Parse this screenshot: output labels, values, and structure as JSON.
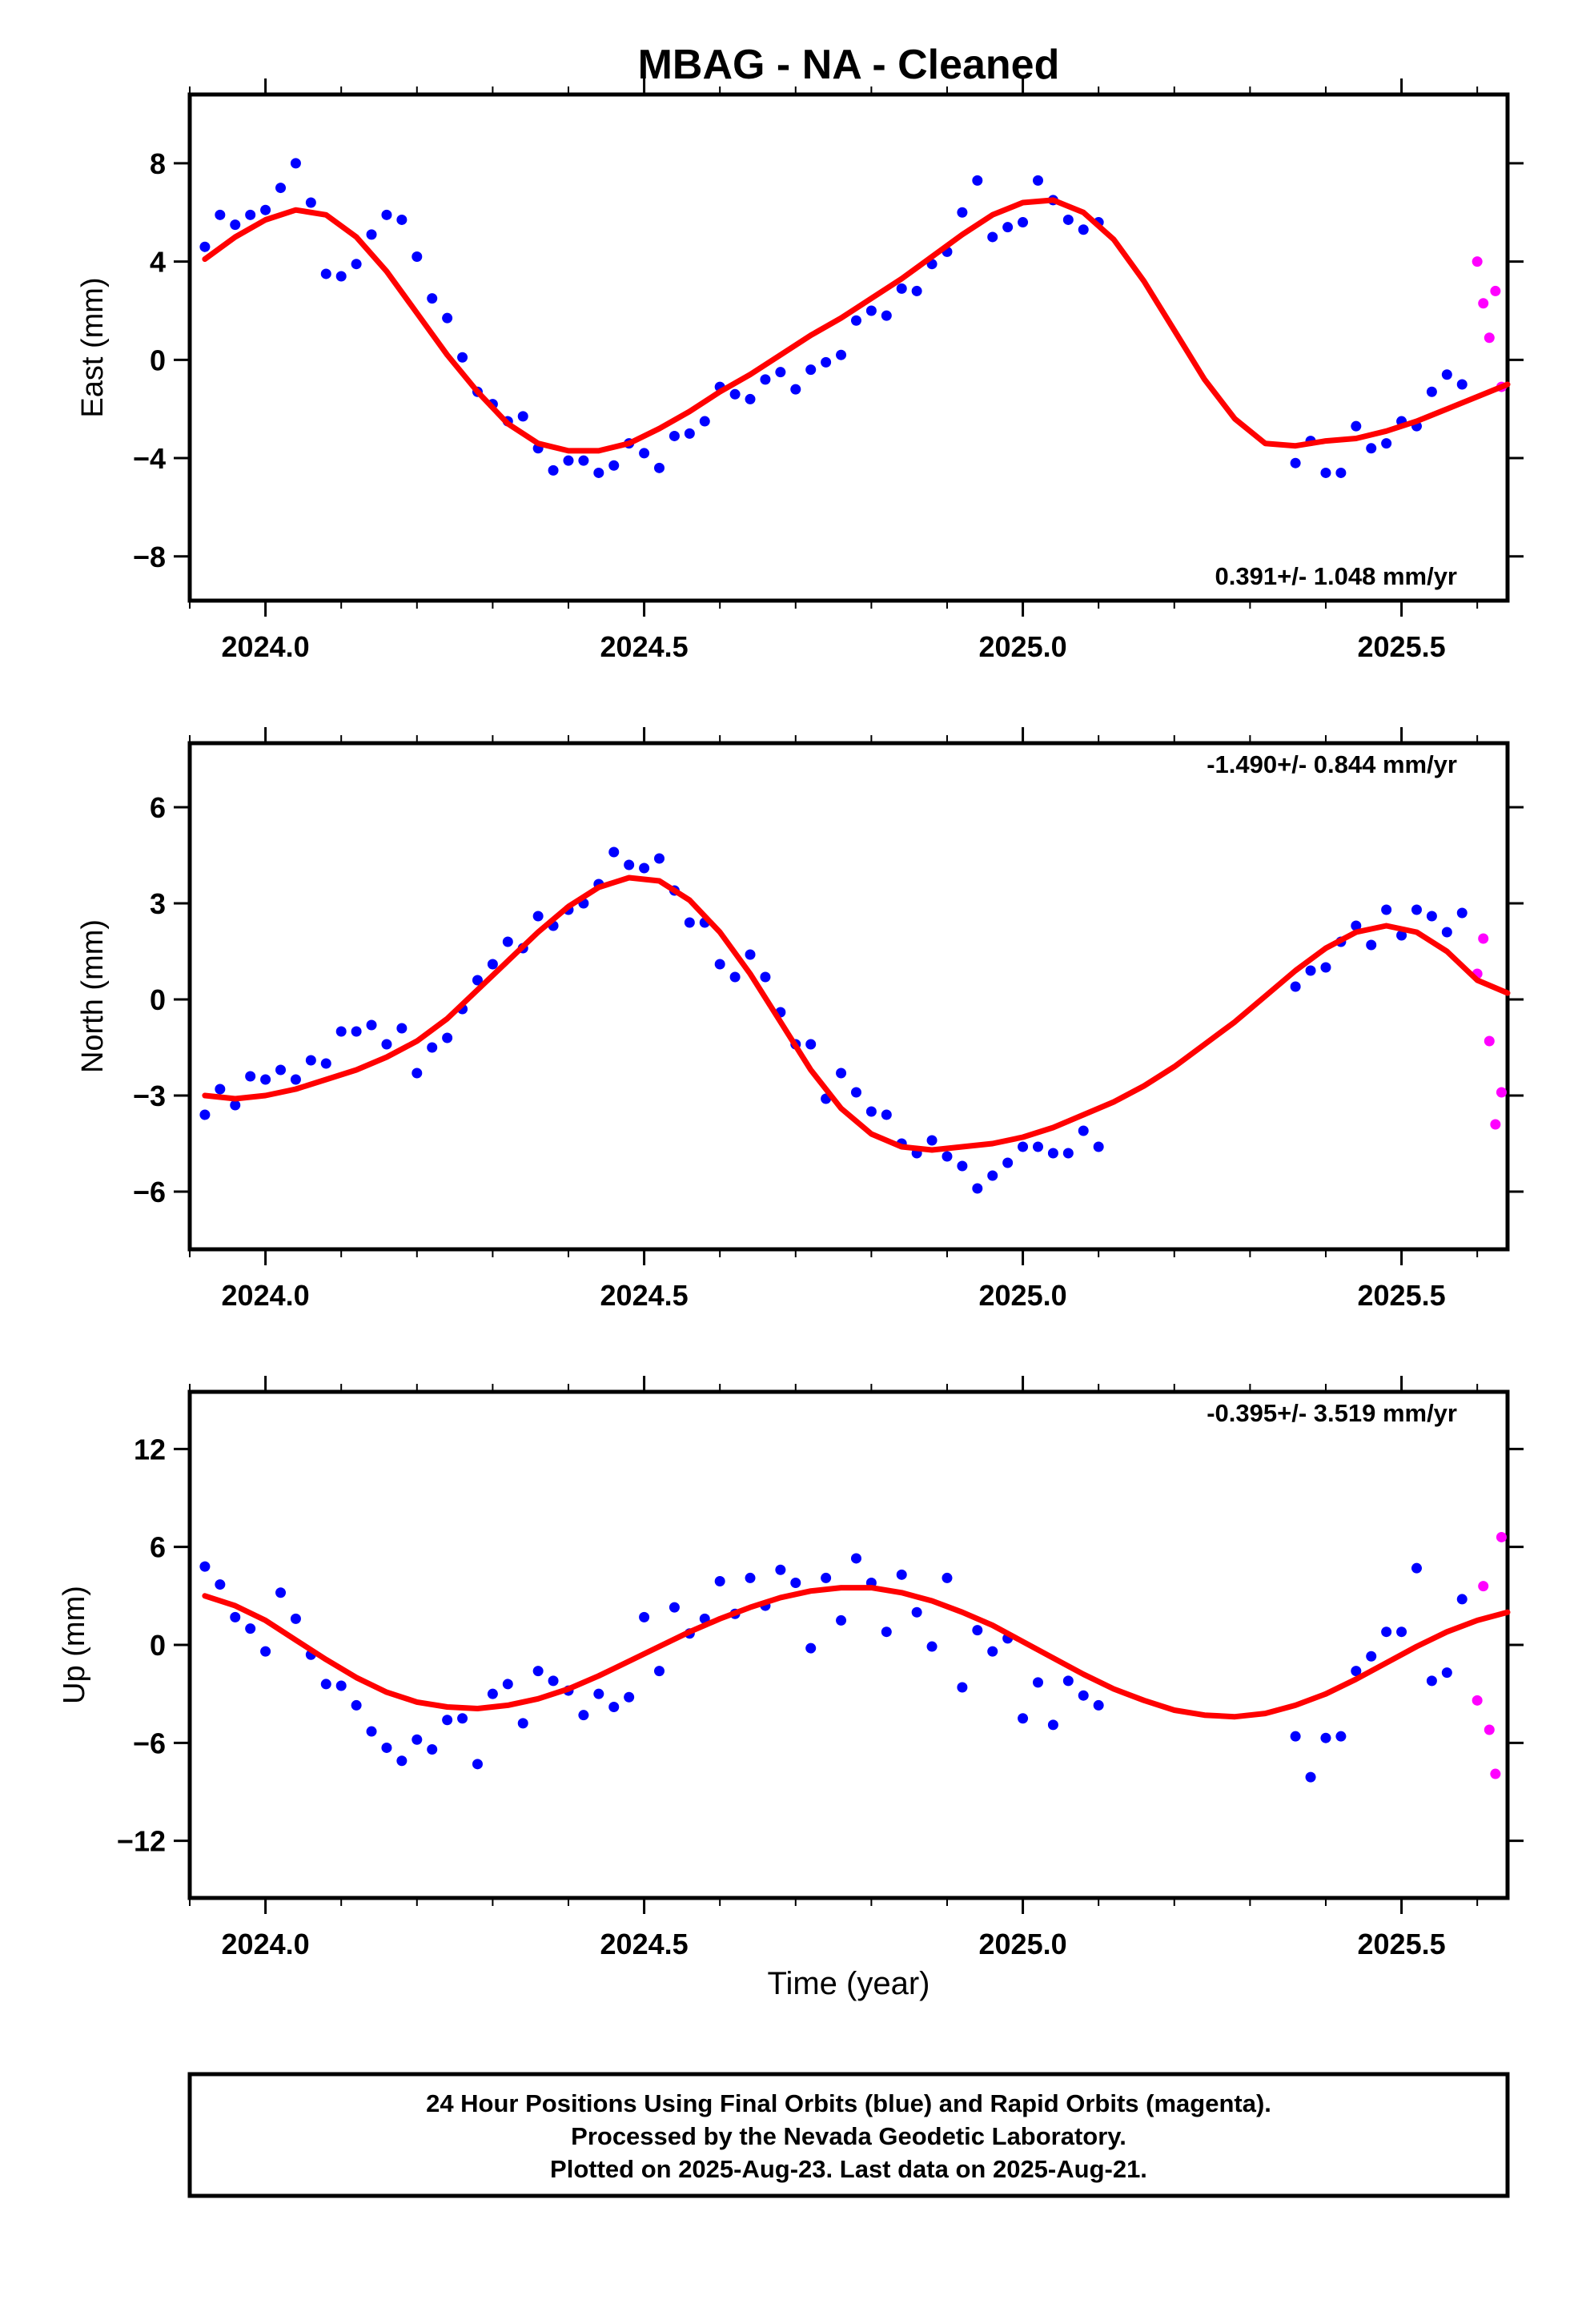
{
  "title": "MBAG  - NA - Cleaned",
  "xlabel": "Time (year)",
  "colors": {
    "final": "#0000ff",
    "rapid": "#ff00ff",
    "model": "#ff0000",
    "frame": "#000000"
  },
  "footer": {
    "line1": "24 Hour Positions Using Final Orbits (blue) and Rapid Orbits (magenta).",
    "line2": "Processed by the Nevada Geodetic Laboratory.",
    "line3": "Plotted on 2025-Aug-23. Last data on 2025-Aug-21."
  },
  "chart_data": [
    {
      "type": "scatter",
      "ylabel": "East (mm)",
      "rate_label": "0.391+/- 1.048 mm/yr",
      "xlim": [
        2023.9,
        2025.64
      ],
      "ylim": [
        -9.8,
        10.8
      ],
      "xticks": [
        2024.0,
        2024.5,
        2025.0,
        2025.5
      ],
      "xtick_labels": [
        "2024.0",
        "2024.5",
        "2025.0",
        "2025.5"
      ],
      "yticks": [
        -8,
        -4,
        0,
        4,
        8
      ],
      "ytick_labels": [
        "−8",
        "−4",
        "0",
        "4",
        "8"
      ],
      "series": [
        {
          "x": [
            2023.92,
            2023.94,
            2023.96,
            2023.98,
            2024.0,
            2024.02,
            2024.04,
            2024.06,
            2024.08,
            2024.1,
            2024.12,
            2024.14,
            2024.16,
            2024.18,
            2024.2,
            2024.22,
            2024.24,
            2024.26,
            2024.28,
            2024.3,
            2024.32,
            2024.34,
            2024.36,
            2024.38,
            2024.4,
            2024.42,
            2024.44,
            2024.46,
            2024.48,
            2024.5,
            2024.52,
            2024.54,
            2024.56,
            2024.58,
            2024.6,
            2024.62,
            2024.64,
            2024.66,
            2024.68,
            2024.7,
            2024.72,
            2024.74,
            2024.76,
            2024.78,
            2024.8,
            2024.82,
            2024.84,
            2024.86,
            2024.88,
            2024.9,
            2024.92,
            2024.94,
            2024.96,
            2024.98,
            2025.0,
            2025.02,
            2025.04,
            2025.06,
            2025.08,
            2025.1,
            2025.36,
            2025.38,
            2025.4,
            2025.42,
            2025.44,
            2025.46,
            2025.48,
            2025.5,
            2025.52,
            2025.54,
            2025.56,
            2025.58
          ],
          "y": [
            4.6,
            5.9,
            5.5,
            5.9,
            6.1,
            7.0,
            8.0,
            6.4,
            3.5,
            3.4,
            3.9,
            5.1,
            5.9,
            5.7,
            4.2,
            2.5,
            1.7,
            0.1,
            -1.3,
            -1.8,
            -2.5,
            -2.3,
            -3.6,
            -4.5,
            -4.1,
            -4.1,
            -4.6,
            -4.3,
            -3.4,
            -3.8,
            -4.4,
            -3.1,
            -3.0,
            -2.5,
            -1.1,
            -1.4,
            -1.6,
            -0.8,
            -0.5,
            -1.2,
            -0.4,
            -0.1,
            0.2,
            1.6,
            2.0,
            1.8,
            2.9,
            2.8,
            3.9,
            4.4,
            6.0,
            7.3,
            5.0,
            5.4,
            5.6,
            7.3,
            6.5,
            5.7,
            5.3,
            5.6,
            -4.2,
            -3.3,
            -4.6,
            -4.6,
            -2.7,
            -3.6,
            -3.4,
            -2.5,
            -2.7,
            -1.3,
            -0.6,
            -1.0
          ],
          "role": "final"
        },
        {
          "x": [
            2025.6,
            2025.608,
            2025.616,
            2025.624,
            2025.632
          ],
          "y": [
            4.0,
            2.3,
            0.9,
            2.8,
            -1.1
          ],
          "role": "rapid"
        }
      ],
      "model_fit": {
        "x": [
          2023.92,
          2023.96,
          2024.0,
          2024.04,
          2024.08,
          2024.12,
          2024.16,
          2024.2,
          2024.24,
          2024.28,
          2024.32,
          2024.36,
          2024.4,
          2024.44,
          2024.48,
          2024.52,
          2024.56,
          2024.6,
          2024.64,
          2024.68,
          2024.72,
          2024.76,
          2024.8,
          2024.84,
          2024.88,
          2024.92,
          2024.96,
          2025.0,
          2025.04,
          2025.08,
          2025.12,
          2025.16,
          2025.2,
          2025.24,
          2025.28,
          2025.32,
          2025.36,
          2025.4,
          2025.44,
          2025.48,
          2025.52,
          2025.56,
          2025.6,
          2025.64
        ],
        "y": [
          4.1,
          5.0,
          5.7,
          6.1,
          5.9,
          5.0,
          3.6,
          1.9,
          0.2,
          -1.3,
          -2.6,
          -3.4,
          -3.7,
          -3.7,
          -3.4,
          -2.8,
          -2.1,
          -1.3,
          -0.6,
          0.2,
          1.0,
          1.7,
          2.5,
          3.3,
          4.2,
          5.1,
          5.9,
          6.4,
          6.5,
          6.0,
          4.9,
          3.2,
          1.2,
          -0.8,
          -2.4,
          -3.4,
          -3.5,
          -3.3,
          -3.2,
          -2.9,
          -2.5,
          -2.0,
          -1.5,
          -1.0
        ]
      }
    },
    {
      "type": "scatter",
      "ylabel": "North (mm)",
      "rate_label": "-1.490+/- 0.844 mm/yr",
      "xlim": [
        2023.9,
        2025.64
      ],
      "ylim": [
        -7.8,
        8.0
      ],
      "xticks": [
        2024.0,
        2024.5,
        2025.0,
        2025.5
      ],
      "xtick_labels": [
        "2024.0",
        "2024.5",
        "2025.0",
        "2025.5"
      ],
      "yticks": [
        -6,
        -3,
        0,
        3,
        6
      ],
      "ytick_labels": [
        "−6",
        "−3",
        "0",
        "3",
        "6"
      ],
      "series": [
        {
          "x": [
            2023.92,
            2023.94,
            2023.96,
            2023.98,
            2024.0,
            2024.02,
            2024.04,
            2024.06,
            2024.08,
            2024.1,
            2024.12,
            2024.14,
            2024.16,
            2024.18,
            2024.2,
            2024.22,
            2024.24,
            2024.26,
            2024.28,
            2024.3,
            2024.32,
            2024.34,
            2024.36,
            2024.38,
            2024.4,
            2024.42,
            2024.44,
            2024.46,
            2024.48,
            2024.5,
            2024.52,
            2024.54,
            2024.56,
            2024.58,
            2024.6,
            2024.62,
            2024.64,
            2024.66,
            2024.68,
            2024.7,
            2024.72,
            2024.74,
            2024.76,
            2024.78,
            2024.8,
            2024.82,
            2024.84,
            2024.86,
            2024.88,
            2024.9,
            2024.92,
            2024.94,
            2024.96,
            2024.98,
            2025.0,
            2025.02,
            2025.04,
            2025.06,
            2025.08,
            2025.1,
            2025.36,
            2025.38,
            2025.4,
            2025.42,
            2025.44,
            2025.46,
            2025.48,
            2025.5,
            2025.52,
            2025.54,
            2025.56,
            2025.58
          ],
          "y": [
            -3.6,
            -2.8,
            -3.3,
            -2.4,
            -2.5,
            -2.2,
            -2.5,
            -1.9,
            -2.0,
            -1.0,
            -1.0,
            -0.8,
            -1.4,
            -0.9,
            -2.3,
            -1.5,
            -1.2,
            -0.3,
            0.6,
            1.1,
            1.8,
            1.6,
            2.6,
            2.3,
            2.8,
            3.0,
            3.6,
            4.6,
            4.2,
            4.1,
            4.4,
            3.4,
            2.4,
            2.4,
            1.1,
            0.7,
            1.4,
            0.7,
            -0.4,
            -1.4,
            -1.4,
            -3.1,
            -2.3,
            -2.9,
            -3.5,
            -3.6,
            -4.5,
            -4.8,
            -4.4,
            -4.9,
            -5.2,
            -5.9,
            -5.5,
            -5.1,
            -4.6,
            -4.6,
            -4.8,
            -4.8,
            -4.1,
            -4.6,
            0.4,
            0.9,
            1.0,
            1.8,
            2.3,
            1.7,
            2.8,
            2.0,
            2.8,
            2.6,
            2.1,
            2.7
          ],
          "role": "final"
        },
        {
          "x": [
            2025.6,
            2025.608,
            2025.616,
            2025.624,
            2025.632
          ],
          "y": [
            0.8,
            1.9,
            -1.3,
            -3.9,
            -2.9
          ],
          "role": "rapid"
        }
      ],
      "model_fit": {
        "x": [
          2023.92,
          2023.96,
          2024.0,
          2024.04,
          2024.08,
          2024.12,
          2024.16,
          2024.2,
          2024.24,
          2024.28,
          2024.32,
          2024.36,
          2024.4,
          2024.44,
          2024.48,
          2024.52,
          2024.56,
          2024.6,
          2024.64,
          2024.68,
          2024.72,
          2024.76,
          2024.8,
          2024.84,
          2024.88,
          2024.92,
          2024.96,
          2025.0,
          2025.04,
          2025.08,
          2025.12,
          2025.16,
          2025.2,
          2025.24,
          2025.28,
          2025.32,
          2025.36,
          2025.4,
          2025.44,
          2025.48,
          2025.52,
          2025.56,
          2025.6,
          2025.64
        ],
        "y": [
          -3.0,
          -3.1,
          -3.0,
          -2.8,
          -2.5,
          -2.2,
          -1.8,
          -1.3,
          -0.6,
          0.3,
          1.2,
          2.1,
          2.9,
          3.5,
          3.8,
          3.7,
          3.1,
          2.1,
          0.8,
          -0.7,
          -2.2,
          -3.4,
          -4.2,
          -4.6,
          -4.7,
          -4.6,
          -4.5,
          -4.3,
          -4.0,
          -3.6,
          -3.2,
          -2.7,
          -2.1,
          -1.4,
          -0.7,
          0.1,
          0.9,
          1.6,
          2.1,
          2.3,
          2.1,
          1.5,
          0.6,
          0.2
        ]
      }
    },
    {
      "type": "scatter",
      "ylabel": "Up (mm)",
      "rate_label": "-0.395+/- 3.519 mm/yr",
      "xlim": [
        2023.9,
        2025.64
      ],
      "ylim": [
        -15.5,
        15.5
      ],
      "xticks": [
        2024.0,
        2024.5,
        2025.0,
        2025.5
      ],
      "xtick_labels": [
        "2024.0",
        "2024.5",
        "2025.0",
        "2025.5"
      ],
      "yticks": [
        -12,
        -6,
        0,
        6,
        12
      ],
      "ytick_labels": [
        "−12",
        "−6",
        "0",
        "6",
        "12"
      ],
      "series": [
        {
          "x": [
            2023.92,
            2023.94,
            2023.96,
            2023.98,
            2024.0,
            2024.02,
            2024.04,
            2024.06,
            2024.08,
            2024.1,
            2024.12,
            2024.14,
            2024.16,
            2024.18,
            2024.2,
            2024.22,
            2024.24,
            2024.26,
            2024.28,
            2024.3,
            2024.32,
            2024.34,
            2024.36,
            2024.38,
            2024.4,
            2024.42,
            2024.44,
            2024.46,
            2024.48,
            2024.5,
            2024.52,
            2024.54,
            2024.56,
            2024.58,
            2024.6,
            2024.62,
            2024.64,
            2024.66,
            2024.68,
            2024.7,
            2024.72,
            2024.74,
            2024.76,
            2024.78,
            2024.8,
            2024.82,
            2024.84,
            2024.86,
            2024.88,
            2024.9,
            2024.92,
            2024.94,
            2024.96,
            2024.98,
            2025.0,
            2025.02,
            2025.04,
            2025.06,
            2025.08,
            2025.1,
            2025.36,
            2025.38,
            2025.4,
            2025.42,
            2025.44,
            2025.46,
            2025.48,
            2025.5,
            2025.52,
            2025.54,
            2025.56,
            2025.58
          ],
          "y": [
            4.8,
            3.7,
            1.7,
            1.0,
            -0.4,
            3.2,
            1.6,
            -0.6,
            -2.4,
            -2.5,
            -3.7,
            -5.3,
            -6.3,
            -7.1,
            -5.8,
            -6.4,
            -4.6,
            -4.5,
            -7.3,
            -3.0,
            -2.4,
            -4.8,
            -1.6,
            -2.2,
            -2.8,
            -4.3,
            -3.0,
            -3.8,
            -3.2,
            1.7,
            -1.6,
            2.3,
            0.7,
            1.6,
            3.9,
            1.9,
            4.1,
            2.4,
            4.6,
            3.8,
            -0.2,
            4.1,
            1.5,
            5.3,
            3.8,
            0.8,
            4.3,
            2.0,
            -0.1,
            4.1,
            -2.6,
            0.9,
            -0.4,
            0.4,
            -4.5,
            -2.3,
            -4.9,
            -2.2,
            -3.1,
            -3.7,
            -5.6,
            -8.1,
            -5.7,
            -5.6,
            -1.6,
            -0.7,
            0.8,
            0.8,
            4.7,
            -2.2,
            -1.7,
            2.8
          ],
          "role": "final"
        },
        {
          "x": [
            2025.6,
            2025.608,
            2025.616,
            2025.624,
            2025.632
          ],
          "y": [
            -3.4,
            3.6,
            -5.2,
            -7.9,
            6.6
          ],
          "role": "rapid"
        }
      ],
      "model_fit": {
        "x": [
          2023.92,
          2023.96,
          2024.0,
          2024.04,
          2024.08,
          2024.12,
          2024.16,
          2024.2,
          2024.24,
          2024.28,
          2024.32,
          2024.36,
          2024.4,
          2024.44,
          2024.48,
          2024.52,
          2024.56,
          2024.6,
          2024.64,
          2024.68,
          2024.72,
          2024.76,
          2024.8,
          2024.84,
          2024.88,
          2024.92,
          2024.96,
          2025.0,
          2025.04,
          2025.08,
          2025.12,
          2025.16,
          2025.2,
          2025.24,
          2025.28,
          2025.32,
          2025.36,
          2025.4,
          2025.44,
          2025.48,
          2025.52,
          2025.56,
          2025.6,
          2025.64
        ],
        "y": [
          3.0,
          2.4,
          1.5,
          0.3,
          -0.9,
          -2.0,
          -2.9,
          -3.5,
          -3.8,
          -3.9,
          -3.7,
          -3.3,
          -2.7,
          -1.9,
          -1.0,
          -0.1,
          0.8,
          1.6,
          2.3,
          2.9,
          3.3,
          3.5,
          3.5,
          3.2,
          2.7,
          2.0,
          1.2,
          0.2,
          -0.8,
          -1.8,
          -2.7,
          -3.4,
          -4.0,
          -4.3,
          -4.4,
          -4.2,
          -3.7,
          -3.0,
          -2.1,
          -1.1,
          -0.1,
          0.8,
          1.5,
          2.0
        ]
      }
    }
  ]
}
